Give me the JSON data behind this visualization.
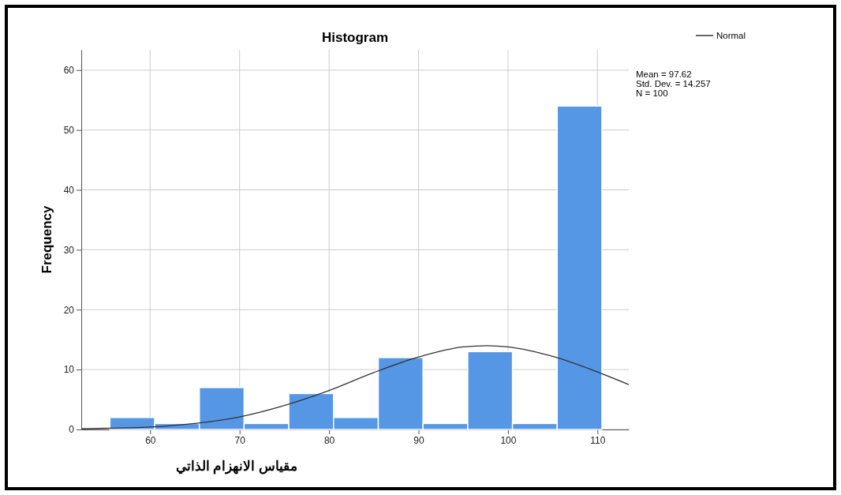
{
  "chart_data": {
    "type": "histogram",
    "title": "Histogram",
    "xlabel": "مقياس الانهزام الذاتي",
    "ylabel": "Frequency",
    "xlim": [
      52.3,
      113.5
    ],
    "xticks": [
      60,
      70,
      80,
      90,
      100,
      110
    ],
    "ylim": [
      0,
      63.4
    ],
    "yticks": [
      0,
      10,
      20,
      30,
      40,
      50,
      60
    ],
    "grid": true,
    "legend": "top right",
    "series": [
      {
        "color": "#5596e5",
        "bins": [
          55.5,
          60.5,
          65.5,
          70.5,
          75.5,
          80.5,
          85.5,
          90.5,
          95.5,
          100.5,
          105.5,
          110.5
        ],
        "values": [
          2,
          1,
          7,
          1,
          6,
          2,
          12,
          1,
          13,
          1,
          54
        ]
      },
      {
        "type": "line",
        "name": "Normal",
        "color": "#333333",
        "x": [
          52.3,
          55,
          60,
          65,
          70,
          75,
          80,
          85,
          90,
          95,
          97.62,
          100,
          105,
          110,
          113.5
        ],
        "values": [
          0.1,
          0.2,
          0.4,
          1,
          2.1,
          4,
          6.5,
          9.5,
          12.1,
          13.8,
          14,
          13.8,
          12.2,
          9.6,
          7.5
        ]
      }
    ],
    "annotations": [
      "Mean = 97.62",
      "Std. Dev. = 14.257",
      "N = 100"
    ]
  }
}
